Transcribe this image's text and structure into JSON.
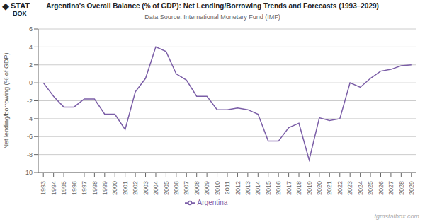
{
  "chart_data": {
    "type": "line",
    "title": "Argentina's Overall Balance (% of GDP): Net Lending/Borrowing Trends and Forecasts (1993–2029)",
    "subtitle": "Data Source: International Monetary Fund (IMF)",
    "y_label": "Net lending/borrowing (% of GDP)",
    "x": [
      1993,
      1994,
      1995,
      1996,
      1997,
      1998,
      1999,
      2000,
      2001,
      2002,
      2003,
      2004,
      2005,
      2006,
      2007,
      2008,
      2009,
      2010,
      2011,
      2012,
      2013,
      2014,
      2015,
      2016,
      2017,
      2018,
      2019,
      2020,
      2021,
      2022,
      2023,
      2024,
      2025,
      2026,
      2027,
      2028,
      2029
    ],
    "series": [
      {
        "name": "Argentina",
        "color": "#7B5EA7",
        "values": [
          0.0,
          -1.5,
          -2.7,
          -2.7,
          -1.8,
          -1.8,
          -3.5,
          -3.5,
          -5.2,
          -1.0,
          0.5,
          4.0,
          3.5,
          1.0,
          0.3,
          -1.5,
          -1.5,
          -3.0,
          -3.0,
          -2.8,
          -3.0,
          -3.5,
          -6.5,
          -6.5,
          -5.0,
          -4.5,
          -8.6,
          -3.9,
          -4.2,
          -4.0,
          0.0,
          -0.5,
          0.5,
          1.3,
          1.5,
          1.9,
          2.0
        ]
      }
    ],
    "xlim": [
      1992.5,
      2029.5
    ],
    "xticks": [
      1993,
      1994,
      1995,
      1996,
      1997,
      1998,
      1999,
      2000,
      2001,
      2002,
      2003,
      2004,
      2005,
      2006,
      2007,
      2008,
      2009,
      2010,
      2011,
      2012,
      2013,
      2014,
      2015,
      2016,
      2017,
      2018,
      2019,
      2020,
      2021,
      2022,
      2023,
      2024,
      2025,
      2026,
      2027,
      2028,
      2029
    ],
    "ylim": [
      -10,
      6
    ],
    "yticks": [
      -10,
      -8,
      -6,
      -4,
      -2,
      0,
      2,
      4,
      6
    ],
    "grid": true,
    "legend": "bottom",
    "annotations": [
      "tgmstatbox.com",
      "◆",
      "STAT",
      "BOX"
    ]
  }
}
